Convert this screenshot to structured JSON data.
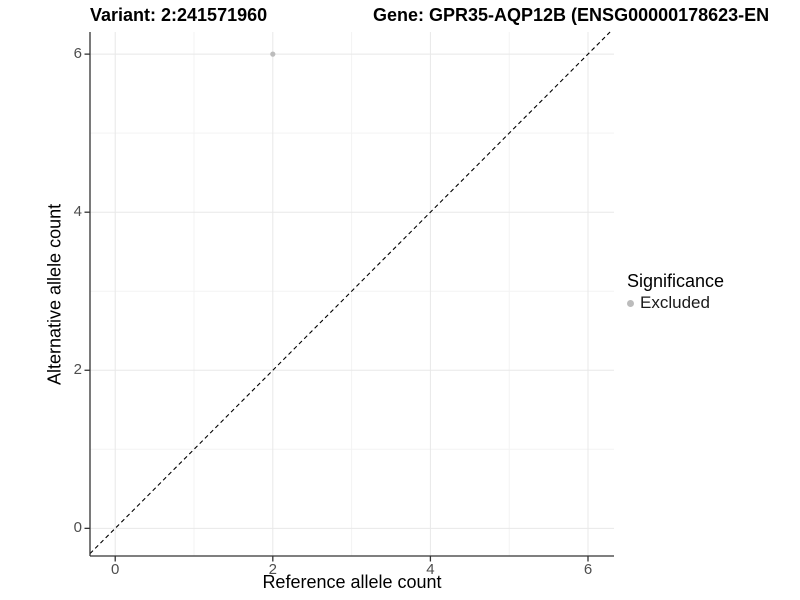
{
  "chart": {
    "title_left": "Variant: 2:241571960",
    "title_right": "Gene: GPR35-AQP12B (ENSG00000178623-EN",
    "xlabel": "Reference allele count",
    "ylabel": "Alternative allele count",
    "legend": {
      "title": "Significance",
      "items": [
        {
          "label": "Excluded",
          "color": "#bcbcbc"
        }
      ]
    }
  },
  "chart_data": {
    "type": "scatter",
    "title": "Variant: 2:241571960    Gene: GPR35-AQP12B (ENSG00000178623-EN…)",
    "xlabel": "Reference allele count",
    "ylabel": "Alternative allele count",
    "x_ticks": [
      0,
      2,
      4,
      6
    ],
    "y_ticks": [
      0,
      2,
      4,
      6
    ],
    "minor_grid": [
      1,
      3,
      5
    ],
    "xlim": [
      -0.32,
      6.33
    ],
    "ylim": [
      -0.35,
      6.28
    ],
    "grid": "major and minor gridlines on, white panel background",
    "legend_position": "right",
    "series": [
      {
        "name": "Excluded",
        "color": "#bcbcbc",
        "points": [
          {
            "x": 2,
            "y": 6
          }
        ]
      }
    ],
    "reference_line": {
      "type": "identity y=x",
      "style": "dashed",
      "color": "#000000"
    },
    "colors": {
      "axis_line": "#333333",
      "tick_mark": "#333333",
      "tick_label": "#4d4d4d",
      "grid_major": "#e8e8e8",
      "grid_minor": "#f3f3f3",
      "panel_background": "#ffffff"
    }
  }
}
